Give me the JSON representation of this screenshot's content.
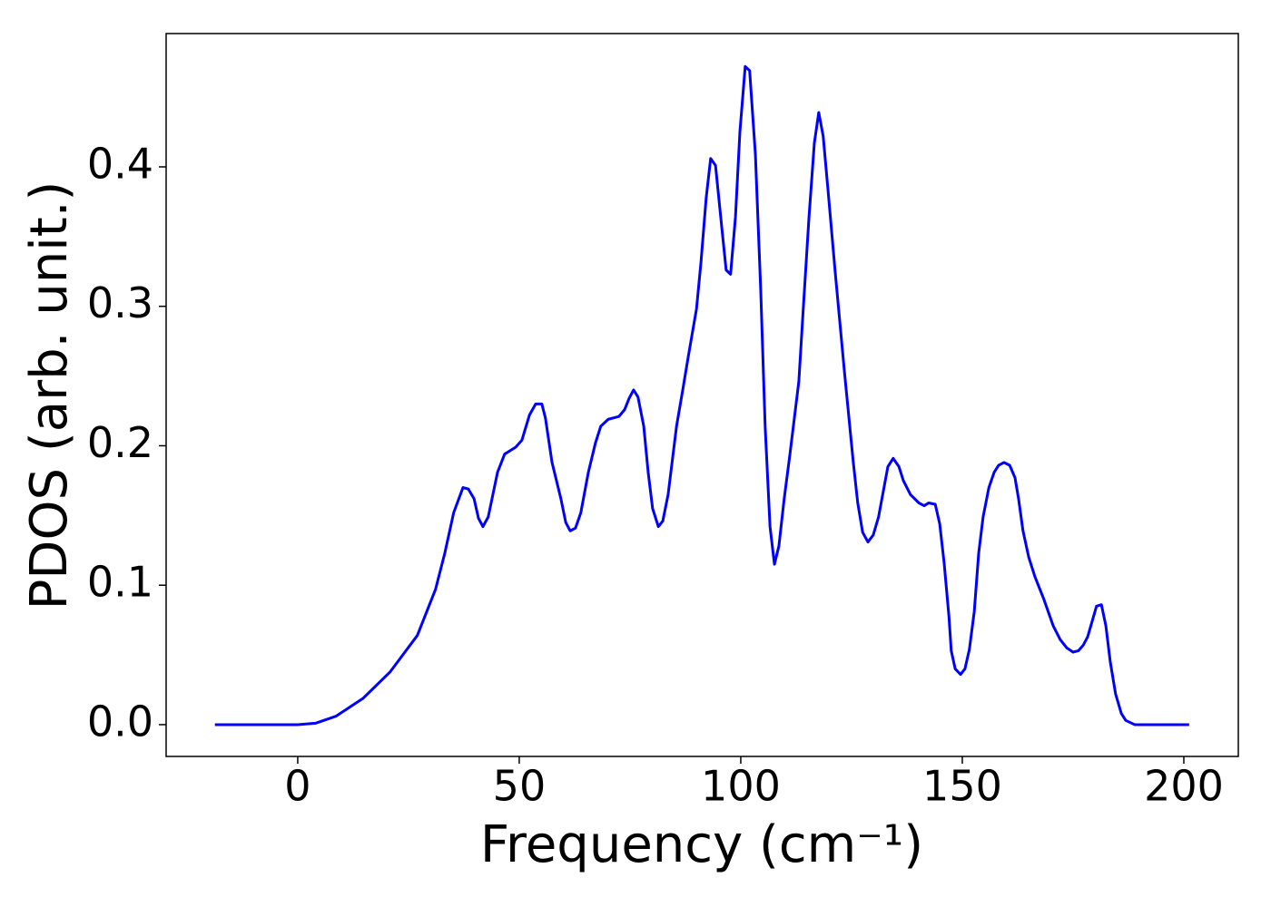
{
  "chart_data": {
    "type": "line",
    "x_label": "Frequency (cm⁻¹)",
    "y_label": "PDOS (arb. unit.)",
    "xlim": [
      -29.7,
      212.3
    ],
    "ylim": [
      -0.0228,
      0.4956
    ],
    "xticks": [
      0,
      50,
      100,
      150,
      200
    ],
    "yticks": [
      {
        "value": 0,
        "label": "0.0"
      },
      0.1,
      0.2,
      0.3,
      0.4
    ],
    "grid": false,
    "series": [
      {
        "color": "#0000ff",
        "x": [
          -18.7,
          -10,
          0,
          4,
          8.6,
          14.8,
          20.9,
          27,
          31.1,
          33.2,
          35.2,
          37.3,
          38.5,
          39.8,
          40.8,
          41.8,
          43,
          45.1,
          46.7,
          49.2,
          50.6,
          52.3,
          53.7,
          55.1,
          55.9,
          57.4,
          59.4,
          60.5,
          61.5,
          62.7,
          63.9,
          65.6,
          67.2,
          68.4,
          70.1,
          72.5,
          73.8,
          74.8,
          75.8,
          76.8,
          78.1,
          79.1,
          80.1,
          81.4,
          82.4,
          83.6,
          85.5,
          86.9,
          88.1,
          90,
          91,
          92.2,
          93.2,
          94.3,
          95.7,
          96.7,
          97.7,
          98.8,
          99.8,
          101,
          102,
          103.3,
          104.5,
          105.5,
          106.6,
          107.6,
          108.6,
          109.8,
          111.1,
          113.1,
          114.1,
          115.4,
          116.6,
          117.6,
          118.6,
          119.7,
          121.3,
          123.4,
          125.4,
          126.4,
          127.5,
          128.7,
          129.9,
          131.1,
          133.2,
          134.4,
          135.7,
          136.7,
          138.3,
          140.2,
          141.4,
          142.4,
          143.9,
          144.9,
          145.9,
          147,
          147.5,
          148.4,
          149.6,
          150.6,
          151.6,
          152.7,
          153.7,
          154.7,
          156,
          157.2,
          158.2,
          159.4,
          160.7,
          161.9,
          162.7,
          163.7,
          165,
          166.4,
          168.4,
          170.5,
          172.1,
          173.6,
          175,
          176.2,
          177.3,
          178.3,
          179.3,
          180.3,
          181.4,
          182.4,
          183.4,
          184.6,
          185.9,
          186.9,
          188.9,
          201.2
        ],
        "values": [
          0,
          0,
          0,
          0.001,
          0.006,
          0.019,
          0.038,
          0.064,
          0.097,
          0.123,
          0.152,
          0.17,
          0.169,
          0.162,
          0.148,
          0.142,
          0.149,
          0.181,
          0.194,
          0.199,
          0.204,
          0.222,
          0.23,
          0.23,
          0.22,
          0.188,
          0.162,
          0.145,
          0.139,
          0.141,
          0.152,
          0.181,
          0.202,
          0.214,
          0.219,
          0.221,
          0.226,
          0.234,
          0.24,
          0.235,
          0.214,
          0.181,
          0.155,
          0.142,
          0.146,
          0.165,
          0.214,
          0.24,
          0.263,
          0.298,
          0.331,
          0.378,
          0.406,
          0.401,
          0.357,
          0.326,
          0.323,
          0.364,
          0.425,
          0.472,
          0.469,
          0.409,
          0.312,
          0.214,
          0.142,
          0.115,
          0.128,
          0.162,
          0.194,
          0.246,
          0.298,
          0.364,
          0.417,
          0.439,
          0.422,
          0.383,
          0.325,
          0.253,
          0.188,
          0.159,
          0.138,
          0.131,
          0.136,
          0.149,
          0.185,
          0.191,
          0.185,
          0.175,
          0.165,
          0.159,
          0.157,
          0.159,
          0.158,
          0.144,
          0.116,
          0.077,
          0.053,
          0.04,
          0.036,
          0.04,
          0.054,
          0.081,
          0.123,
          0.149,
          0.17,
          0.181,
          0.186,
          0.188,
          0.186,
          0.177,
          0.162,
          0.139,
          0.12,
          0.106,
          0.09,
          0.071,
          0.061,
          0.055,
          0.052,
          0.053,
          0.057,
          0.063,
          0.074,
          0.085,
          0.086,
          0.071,
          0.045,
          0.022,
          0.008,
          0.003,
          0,
          0
        ]
      }
    ]
  }
}
